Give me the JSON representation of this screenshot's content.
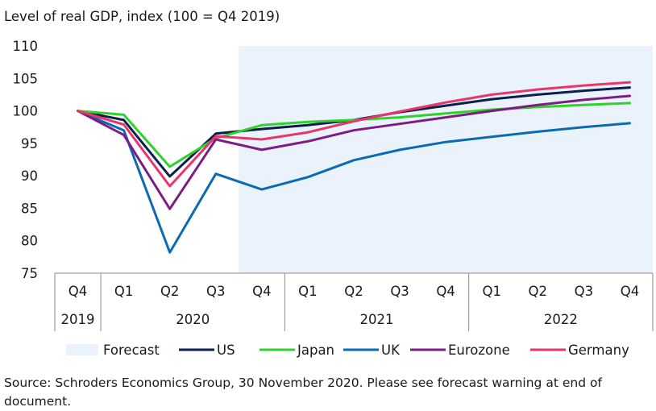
{
  "chart_data": {
    "type": "line",
    "title": "Level of real GDP, index (100 = Q4 2019)",
    "categories": [
      "Q4",
      "Q1",
      "Q2",
      "Q3",
      "Q4",
      "Q1",
      "Q2",
      "Q3",
      "Q4",
      "Q1",
      "Q2",
      "Q3",
      "Q4"
    ],
    "years": [
      {
        "label": "2019",
        "start": 0,
        "end": 0
      },
      {
        "label": "2020",
        "start": 1,
        "end": 4
      },
      {
        "label": "2021",
        "start": 5,
        "end": 8
      },
      {
        "label": "2022",
        "start": 9,
        "end": 12
      }
    ],
    "ylim": [
      75,
      110
    ],
    "yticks": [
      75,
      80,
      85,
      90,
      95,
      100,
      105,
      110
    ],
    "forecast_start_index": 3.5,
    "forecast_label": "Forecast",
    "series": [
      {
        "name": "US",
        "color": "#0b1f4d",
        "values": [
          100,
          98.6,
          89.9,
          96.5,
          97.2,
          97.8,
          98.6,
          99.8,
          100.8,
          101.8,
          102.5,
          103.1,
          103.6
        ]
      },
      {
        "name": "Japan",
        "color": "#2fd12a",
        "values": [
          100,
          99.4,
          91.4,
          95.8,
          97.8,
          98.3,
          98.6,
          99.0,
          99.6,
          100.2,
          100.6,
          100.9,
          101.2
        ]
      },
      {
        "name": "UK",
        "color": "#0a6ab4",
        "values": [
          100,
          97.0,
          78.2,
          90.3,
          87.9,
          89.8,
          92.4,
          94.0,
          95.2,
          96.0,
          96.8,
          97.5,
          98.1
        ]
      },
      {
        "name": "Eurozone",
        "color": "#7d1d83",
        "values": [
          100,
          96.3,
          84.9,
          95.6,
          94.0,
          95.3,
          97.0,
          98.0,
          99.0,
          100.0,
          100.9,
          101.7,
          102.3
        ]
      },
      {
        "name": "Germany",
        "color": "#e8366c",
        "values": [
          100,
          97.9,
          88.4,
          96.1,
          95.6,
          96.7,
          98.4,
          99.9,
          101.3,
          102.5,
          103.3,
          103.9,
          104.4
        ]
      }
    ],
    "source": "Source: Schroders Economics Group, 30 November 2020. Please see forecast warning at end of document."
  },
  "colors": {
    "forecast_band": "#eaf2fb",
    "axis": "#8a8a8a",
    "grid": "#d9d9d9",
    "text": "#1a1a1a"
  }
}
